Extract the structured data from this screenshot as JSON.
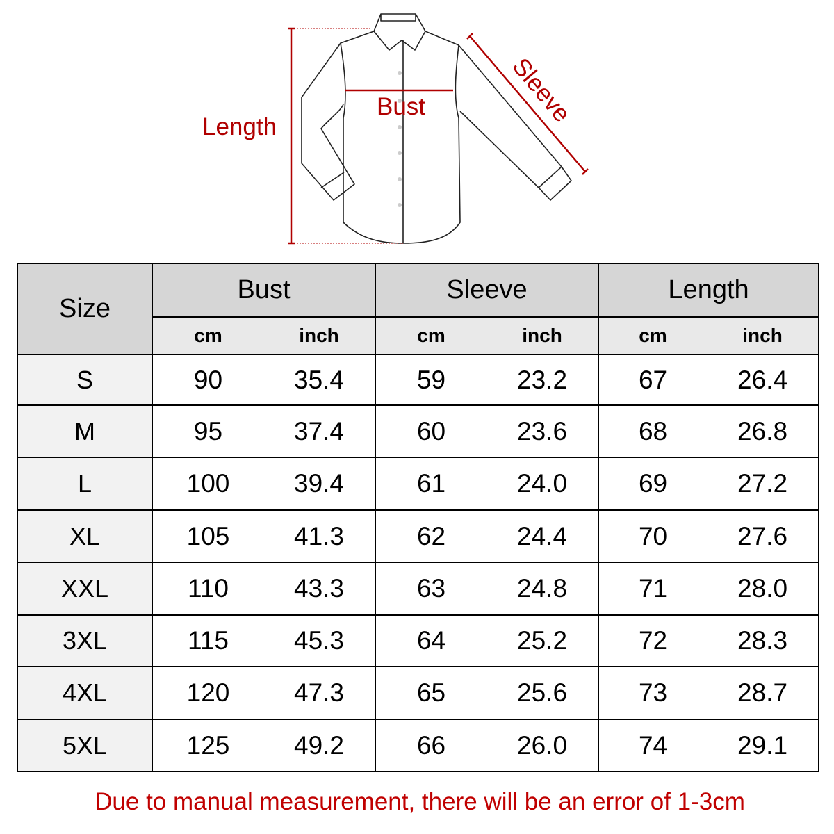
{
  "colors": {
    "accent": "#b00000",
    "note": "#c00000",
    "header_bg": "#d6d6d6",
    "unit_bg": "#e9e9e9",
    "size_bg": "#f2f2f2"
  },
  "diagram": {
    "length_label": "Length",
    "bust_label": "Bust",
    "sleeve_label": "Sleeve",
    "icon": "shirt-icon"
  },
  "table": {
    "size_header": "Size",
    "groups": [
      {
        "label": "Bust"
      },
      {
        "label": "Sleeve"
      },
      {
        "label": "Length"
      }
    ],
    "units": [
      "cm",
      "inch",
      "cm",
      "inch",
      "cm",
      "inch"
    ],
    "rows": [
      {
        "size": "S",
        "values": [
          "90",
          "35.4",
          "59",
          "23.2",
          "67",
          "26.4"
        ]
      },
      {
        "size": "M",
        "values": [
          "95",
          "37.4",
          "60",
          "23.6",
          "68",
          "26.8"
        ]
      },
      {
        "size": "L",
        "values": [
          "100",
          "39.4",
          "61",
          "24.0",
          "69",
          "27.2"
        ]
      },
      {
        "size": "XL",
        "values": [
          "105",
          "41.3",
          "62",
          "24.4",
          "70",
          "27.6"
        ]
      },
      {
        "size": "XXL",
        "values": [
          "110",
          "43.3",
          "63",
          "24.8",
          "71",
          "28.0"
        ]
      },
      {
        "size": "3XL",
        "values": [
          "115",
          "45.3",
          "64",
          "25.2",
          "72",
          "28.3"
        ]
      },
      {
        "size": "4XL",
        "values": [
          "120",
          "47.3",
          "65",
          "25.6",
          "73",
          "28.7"
        ]
      },
      {
        "size": "5XL",
        "values": [
          "125",
          "49.2",
          "66",
          "26.0",
          "74",
          "29.1"
        ]
      }
    ]
  },
  "note": "Due to manual measurement, there will be an error of 1-3cm"
}
